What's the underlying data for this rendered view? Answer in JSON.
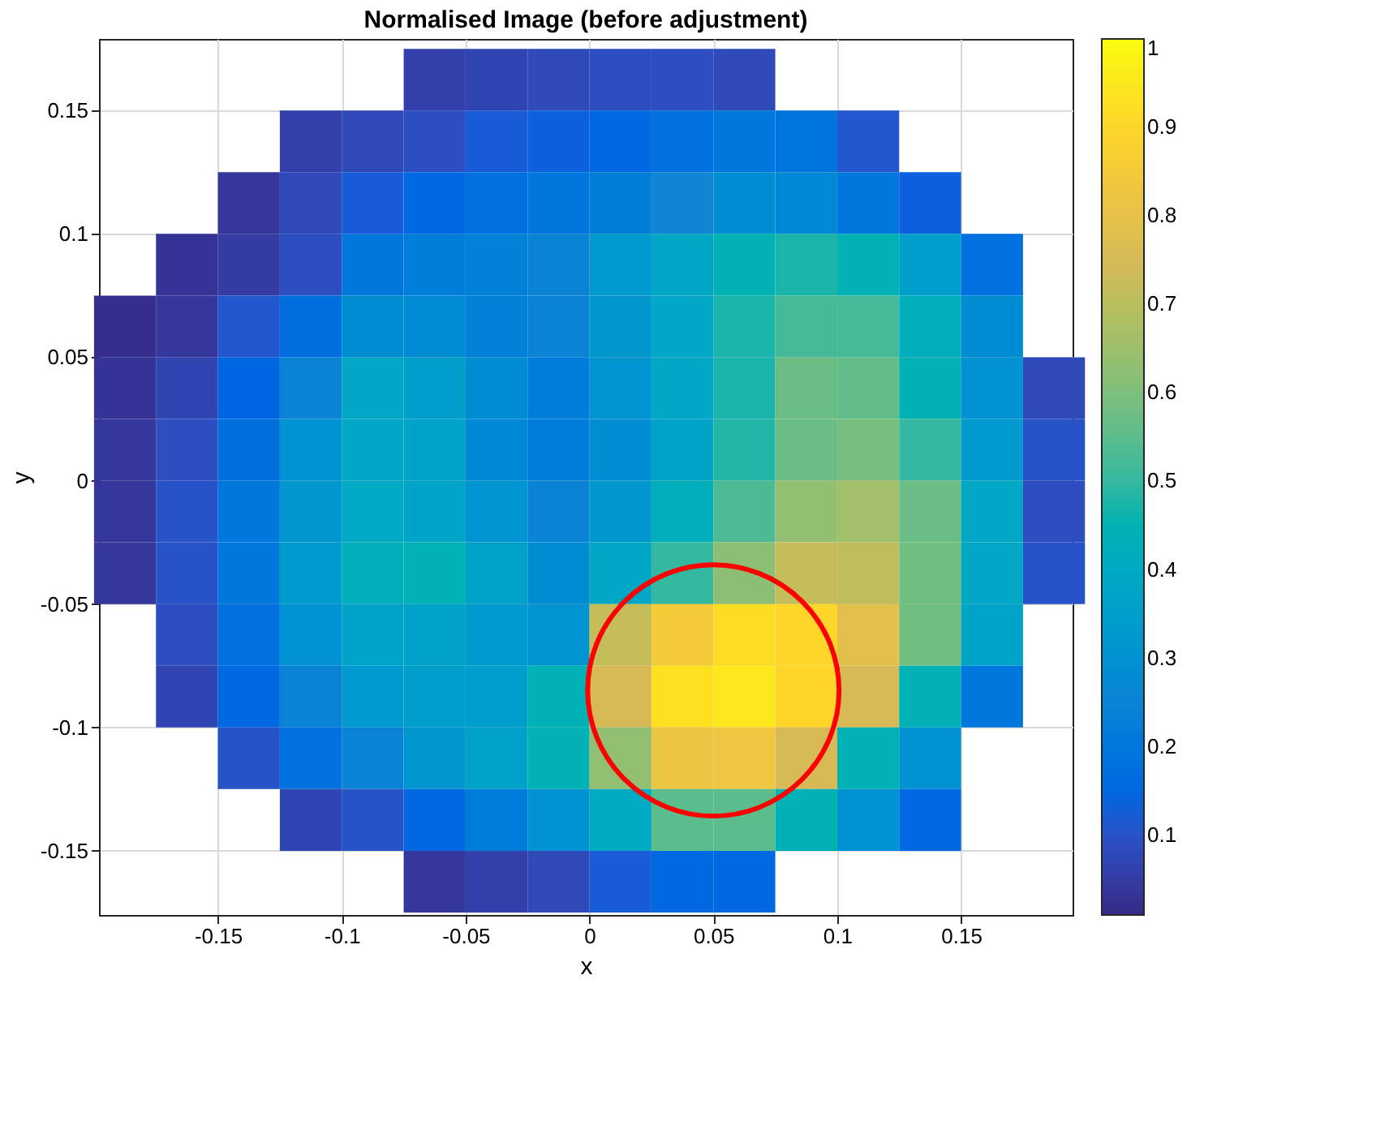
{
  "chart_data": {
    "type": "heatmap",
    "title": "Normalised Image (before adjustment)",
    "xlabel": "x",
    "ylabel": "y",
    "x": [
      -0.1875,
      -0.1625,
      -0.1375,
      -0.1125,
      -0.0875,
      -0.0625,
      -0.0375,
      -0.0125,
      0.0125,
      0.0375,
      0.0625,
      0.0875,
      0.1125,
      0.1375,
      0.1625,
      0.1875
    ],
    "y": [
      0.1625,
      0.1375,
      0.1125,
      0.0875,
      0.0625,
      0.0375,
      0.0125,
      -0.0125,
      -0.0375,
      -0.0625,
      -0.0875,
      -0.1125,
      -0.1375,
      -0.1625
    ],
    "cells": [
      [
        null,
        null,
        null,
        null,
        null,
        0.06,
        0.07,
        0.08,
        0.09,
        0.09,
        0.08,
        null,
        null,
        null,
        null,
        null
      ],
      [
        null,
        null,
        null,
        0.06,
        0.08,
        0.09,
        0.12,
        0.13,
        0.15,
        0.18,
        0.2,
        0.19,
        0.11,
        null,
        null,
        null
      ],
      [
        null,
        null,
        0.04,
        0.08,
        0.12,
        0.15,
        0.18,
        0.2,
        0.23,
        0.26,
        0.29,
        0.27,
        0.2,
        0.13,
        null,
        null
      ],
      [
        null,
        0.03,
        0.05,
        0.09,
        0.2,
        0.23,
        0.24,
        0.25,
        0.33,
        0.38,
        0.45,
        0.47,
        0.45,
        0.35,
        0.18,
        null
      ],
      [
        0.02,
        0.04,
        0.11,
        0.17,
        0.28,
        0.28,
        0.24,
        0.25,
        0.32,
        0.38,
        0.47,
        0.52,
        0.52,
        0.42,
        0.28,
        null
      ],
      [
        0.03,
        0.07,
        0.14,
        0.25,
        0.38,
        0.35,
        0.28,
        0.22,
        0.31,
        0.38,
        0.47,
        0.57,
        0.56,
        0.45,
        0.3,
        0.08
      ],
      [
        0.04,
        0.09,
        0.17,
        0.3,
        0.38,
        0.37,
        0.27,
        0.22,
        0.29,
        0.37,
        0.48,
        0.57,
        0.59,
        0.5,
        0.33,
        0.1
      ],
      [
        0.04,
        0.1,
        0.2,
        0.32,
        0.39,
        0.37,
        0.31,
        0.25,
        0.32,
        0.42,
        0.53,
        0.63,
        0.66,
        0.57,
        0.38,
        0.09
      ],
      [
        0.04,
        0.1,
        0.2,
        0.33,
        0.42,
        0.45,
        0.36,
        0.28,
        0.38,
        0.5,
        0.62,
        0.72,
        0.71,
        0.58,
        0.38,
        0.1
      ],
      [
        null,
        0.09,
        0.18,
        0.3,
        0.37,
        0.36,
        0.33,
        0.31,
        0.72,
        0.85,
        0.92,
        0.9,
        0.79,
        0.58,
        0.37,
        null
      ],
      [
        null,
        0.07,
        0.15,
        0.25,
        0.33,
        0.35,
        0.34,
        0.45,
        0.75,
        0.93,
        0.95,
        0.9,
        0.75,
        0.45,
        0.2,
        null
      ],
      [
        null,
        null,
        0.1,
        0.18,
        0.25,
        0.32,
        0.36,
        0.45,
        0.63,
        0.82,
        0.83,
        0.75,
        0.45,
        0.3,
        null,
        null
      ],
      [
        null,
        null,
        null,
        0.07,
        0.1,
        0.15,
        0.22,
        0.3,
        0.4,
        0.55,
        0.55,
        0.45,
        0.3,
        0.15,
        null,
        null
      ],
      [
        null,
        null,
        null,
        null,
        null,
        0.04,
        0.06,
        0.08,
        0.12,
        0.15,
        0.15,
        null,
        null,
        null,
        null,
        null
      ]
    ],
    "xlim": [
      -0.198,
      0.195
    ],
    "ylim": [
      -0.176,
      0.179
    ],
    "xticks": [
      -0.15,
      -0.1,
      -0.05,
      0,
      0.05,
      0.1,
      0.15
    ],
    "yticks": [
      -0.15,
      -0.1,
      -0.05,
      0,
      0.05,
      0.1,
      0.15
    ],
    "clim": [
      0.01,
      1
    ],
    "cticks": [
      0.1,
      0.2,
      0.3,
      0.4,
      0.5,
      0.6,
      0.7,
      0.8,
      0.9,
      1
    ],
    "grid": true,
    "series": [
      {
        "type": "scatter",
        "marker": "circle",
        "color": "#ff0000",
        "x": [
          0.05
        ],
        "values": [
          -0.085
        ]
      }
    ]
  }
}
